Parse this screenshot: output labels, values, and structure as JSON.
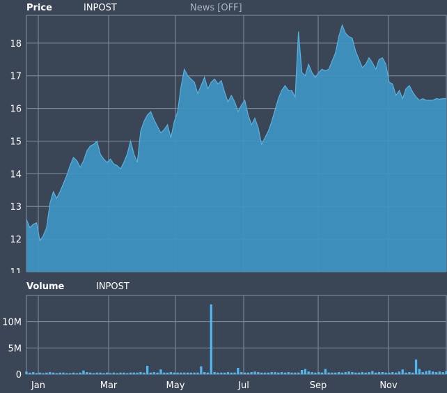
{
  "price_panel": {
    "title": "Price",
    "symbol": "INPOST",
    "news_toggle": "News [OFF]"
  },
  "volume_panel": {
    "title": "Volume",
    "symbol": "INPOST"
  },
  "colors": {
    "background": "#3a4556",
    "grid": "#8491a3",
    "price_fill": "#3f95c3",
    "price_line": "#5ab1de",
    "volume_bar": "#4fb6ee"
  },
  "chart_data": [
    {
      "type": "area",
      "y_ticks": [
        "11",
        "12",
        "13",
        "14",
        "15",
        "16",
        "17",
        "18"
      ],
      "ylim": [
        11,
        18.85
      ],
      "x_ticks": [
        "Jan",
        "Mar",
        "May",
        "Jul",
        "Sep",
        "Nov"
      ],
      "grid": true,
      "x": [
        0,
        2,
        4,
        6,
        8,
        10,
        12,
        14,
        16,
        18,
        20,
        22,
        24,
        26,
        28,
        30,
        32,
        34,
        36,
        38,
        40,
        42,
        44,
        46,
        48,
        50,
        52,
        54,
        56,
        58,
        60,
        62,
        64,
        66,
        68,
        70,
        72,
        74,
        76,
        78,
        80,
        82,
        84,
        86,
        88,
        90,
        92,
        94,
        96,
        98,
        100,
        102,
        104,
        106,
        108,
        110,
        112,
        114,
        116,
        118,
        120,
        122,
        124,
        126,
        128,
        130,
        132,
        134,
        136,
        138,
        140,
        142,
        144,
        146,
        148,
        150,
        152,
        154,
        156,
        158,
        160,
        162,
        164,
        166,
        168,
        170,
        172,
        174,
        176,
        178,
        180,
        182,
        184,
        186,
        188,
        190,
        192,
        194,
        196,
        198,
        200,
        202,
        204,
        206,
        208,
        210,
        212,
        214,
        216,
        218,
        220,
        222,
        224,
        226,
        228,
        230,
        232,
        234,
        236,
        238,
        240,
        242,
        244,
        246,
        248,
        250
      ],
      "values": [
        12.6,
        12.35,
        12.45,
        12.5,
        11.95,
        12.1,
        12.35,
        13.1,
        13.45,
        13.25,
        13.45,
        13.7,
        13.95,
        14.25,
        14.5,
        14.4,
        14.2,
        14.4,
        14.7,
        14.85,
        14.9,
        15.0,
        14.6,
        14.45,
        14.35,
        14.45,
        14.3,
        14.25,
        14.15,
        14.35,
        14.6,
        15.0,
        14.6,
        14.35,
        15.3,
        15.6,
        15.8,
        15.9,
        15.65,
        15.45,
        15.25,
        15.35,
        15.5,
        15.1,
        15.6,
        15.9,
        16.65,
        17.2,
        17.0,
        16.9,
        16.8,
        16.45,
        16.7,
        16.95,
        16.6,
        16.8,
        16.9,
        16.75,
        16.85,
        16.5,
        16.2,
        16.4,
        16.2,
        15.9,
        16.1,
        16.25,
        15.8,
        15.5,
        15.7,
        15.4,
        14.9,
        15.1,
        15.3,
        15.6,
        15.95,
        16.3,
        16.55,
        16.7,
        16.55,
        16.55,
        16.35,
        18.35,
        17.1,
        17.0,
        17.35,
        17.1,
        16.95,
        17.1,
        17.2,
        17.15,
        17.2,
        17.45,
        17.7,
        18.2,
        18.55,
        18.3,
        18.2,
        18.15,
        17.75,
        17.5,
        17.25,
        17.35,
        17.55,
        17.4,
        17.2,
        17.5,
        17.55,
        17.35,
        16.8,
        16.75,
        16.4,
        16.55,
        16.3,
        16.6,
        16.7,
        16.5,
        16.35,
        16.25,
        16.3,
        16.25,
        16.25,
        16.25,
        16.3,
        16.28,
        16.3,
        16.3
      ]
    },
    {
      "type": "bar",
      "y_ticks": [
        "0",
        "5M",
        "10M"
      ],
      "ylim": [
        0,
        15
      ],
      "x_ticks": [
        "Jan",
        "Mar",
        "May",
        "Jul",
        "Sep",
        "Nov"
      ],
      "grid": true,
      "x": [
        0,
        2,
        4,
        6,
        8,
        10,
        12,
        14,
        16,
        18,
        20,
        22,
        24,
        26,
        28,
        30,
        32,
        34,
        36,
        38,
        40,
        42,
        44,
        46,
        48,
        50,
        52,
        54,
        56,
        58,
        60,
        62,
        64,
        66,
        68,
        70,
        72,
        74,
        76,
        78,
        80,
        82,
        84,
        86,
        88,
        90,
        92,
        94,
        96,
        98,
        100,
        102,
        104,
        106,
        108,
        110,
        112,
        114,
        116,
        118,
        120,
        122,
        124,
        126,
        128,
        130,
        132,
        134,
        136,
        138,
        140,
        142,
        144,
        146,
        148,
        150,
        152,
        154,
        156,
        158,
        160,
        162,
        164,
        166,
        168,
        170,
        172,
        174,
        176,
        178,
        180,
        182,
        184,
        186,
        188,
        190,
        192,
        194,
        196,
        198,
        200,
        202,
        204,
        206,
        208,
        210,
        212,
        214,
        216,
        218,
        220,
        222,
        224,
        226,
        228,
        230,
        232,
        234,
        236,
        238,
        240,
        242,
        244,
        246,
        248,
        250
      ],
      "values": [
        0.5,
        0.3,
        0.4,
        0.2,
        0.3,
        0.2,
        0.3,
        0.4,
        0.3,
        0.2,
        0.3,
        0.3,
        0.2,
        0.2,
        0.3,
        0.2,
        0.3,
        0.7,
        0.4,
        0.3,
        0.2,
        0.3,
        0.3,
        0.2,
        0.3,
        0.2,
        0.3,
        0.2,
        0.3,
        0.3,
        0.2,
        0.3,
        0.3,
        0.3,
        0.4,
        0.3,
        1.6,
        0.3,
        0.4,
        0.3,
        0.9,
        0.3,
        0.3,
        0.4,
        0.3,
        0.3,
        0.3,
        0.3,
        0.3,
        0.3,
        0.3,
        0.3,
        1.5,
        0.4,
        0.3,
        13.3,
        0.4,
        0.3,
        0.3,
        0.3,
        0.4,
        0.3,
        0.3,
        1.2,
        0.4,
        0.3,
        0.3,
        0.4,
        0.5,
        0.4,
        0.3,
        0.3,
        0.3,
        0.4,
        0.4,
        0.3,
        0.4,
        0.3,
        0.4,
        0.3,
        0.3,
        0.3,
        0.8,
        1.0,
        0.5,
        0.4,
        0.3,
        0.4,
        0.3,
        1.0,
        0.3,
        0.3,
        0.3,
        0.4,
        0.3,
        0.4,
        0.5,
        0.4,
        0.3,
        0.3,
        0.4,
        0.3,
        0.4,
        0.6,
        0.3,
        0.4,
        0.4,
        0.3,
        0.3,
        0.4,
        0.3,
        0.5,
        0.9,
        0.3,
        0.4,
        0.3,
        2.8,
        1.0,
        0.4,
        0.6,
        0.7,
        0.5,
        0.4,
        0.5,
        0.4,
        0.6
      ]
    }
  ]
}
